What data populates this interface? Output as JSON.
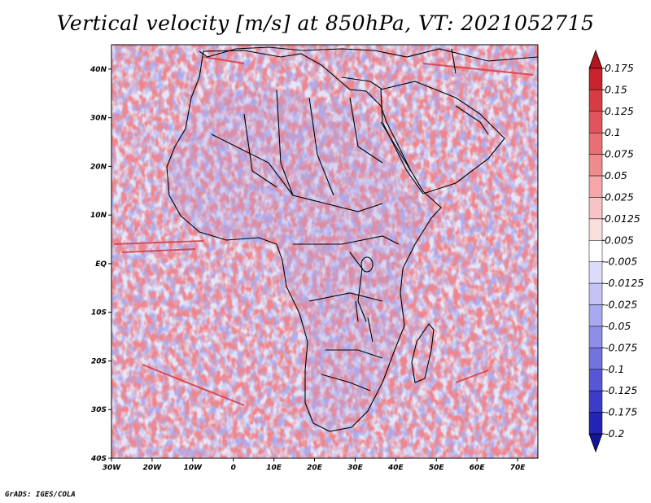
{
  "title": "Vertical velocity [m/s] at 850hPa, VT: 2021052715",
  "credit": "GrADS: IGES/COLA",
  "map": {
    "lat_labels": [
      "40N",
      "30N",
      "20N",
      "10N",
      "EQ",
      "10S",
      "20S",
      "30S",
      "40S"
    ],
    "lat_values": [
      40,
      30,
      20,
      10,
      0,
      -10,
      -20,
      -30,
      -40
    ],
    "lon_labels": [
      "30W",
      "20W",
      "10W",
      "0",
      "10E",
      "20E",
      "30E",
      "40E",
      "50E",
      "60E",
      "70E"
    ],
    "lon_values": [
      -30,
      -20,
      -10,
      0,
      10,
      20,
      30,
      40,
      50,
      60,
      70
    ],
    "lon_range": [
      -30,
      75
    ],
    "lat_range": [
      -40,
      45
    ]
  },
  "colorbar": {
    "labels": [
      "0.175",
      "0.15",
      "0.125",
      "0.1",
      "0.075",
      "0.05",
      "0.025",
      "0.0125",
      "0.005",
      "-0.005",
      "-0.0125",
      "-0.025",
      "-0.05",
      "-0.075",
      "-0.1",
      "-0.125",
      "-0.175",
      "-0.2"
    ],
    "colors": [
      "#b4141e",
      "#c8232d",
      "#d73c44",
      "#e0555c",
      "#e87074",
      "#ef8a8d",
      "#f4a6a8",
      "#f8c3c4",
      "#fbdfdf",
      "#ffffff",
      "#dcdcfa",
      "#c3c3f5",
      "#a9a9ef",
      "#8e8ee8",
      "#7373e0",
      "#5757d6",
      "#3c3cc9",
      "#2323b4",
      "#14149a"
    ]
  }
}
